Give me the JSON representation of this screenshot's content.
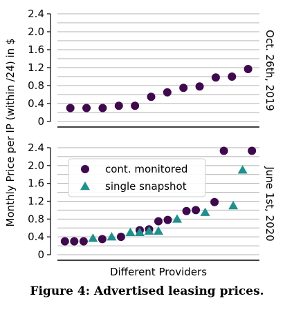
{
  "caption": "Figure 4: Advertised leasing prices.",
  "shared_ylabel": "Monthly Price per IP (within /24) in $",
  "colors": {
    "monitored": "#3f0a4d",
    "snapshot": "#20908c",
    "grid": "#b0b0b0"
  },
  "chart_data": [
    {
      "type": "scatter",
      "title": "Oct. 26th, 2019",
      "xlabel": "",
      "ylabel": "Monthly Price per IP (within /24) in $",
      "ylim": [
        0,
        2.4
      ],
      "yticks": [
        "0",
        "0.4",
        "0.8",
        "1.2",
        "1.6",
        "2.0",
        "2.4"
      ],
      "grid": true,
      "series": [
        {
          "marker": "circle",
          "x": [
            1,
            2,
            3,
            4,
            5,
            6,
            7,
            8,
            9,
            10,
            11,
            12
          ],
          "y": [
            0.3,
            0.3,
            0.3,
            0.35,
            0.35,
            0.55,
            0.65,
            0.75,
            0.78,
            0.98,
            1.0,
            1.17
          ]
        }
      ]
    },
    {
      "type": "scatter",
      "title": "June 1st, 2020",
      "xlabel": "Different Providers",
      "ylabel": "Monthly Price per IP (within /24) in $",
      "ylim": [
        0,
        2.4
      ],
      "yticks": [
        "0",
        "0.4",
        "0.8",
        "1.2",
        "1.6",
        "2.0",
        "2.4"
      ],
      "grid": true,
      "legend": "upper-left",
      "series": [
        {
          "name": "cont. monitored",
          "marker": "circle",
          "x": [
            1,
            2,
            3,
            5,
            7,
            9,
            10,
            11,
            12,
            14,
            15,
            17,
            18,
            21
          ],
          "y": [
            0.3,
            0.3,
            0.3,
            0.35,
            0.4,
            0.55,
            0.57,
            0.75,
            0.78,
            0.98,
            1.0,
            1.18,
            2.33,
            2.33
          ]
        },
        {
          "name": "single snapshot",
          "marker": "triangle",
          "x": [
            4,
            6,
            8,
            9,
            10,
            11,
            13,
            16,
            19,
            20
          ],
          "y": [
            0.37,
            0.4,
            0.5,
            0.5,
            0.53,
            0.53,
            0.8,
            0.95,
            1.1,
            1.9
          ]
        }
      ]
    }
  ]
}
